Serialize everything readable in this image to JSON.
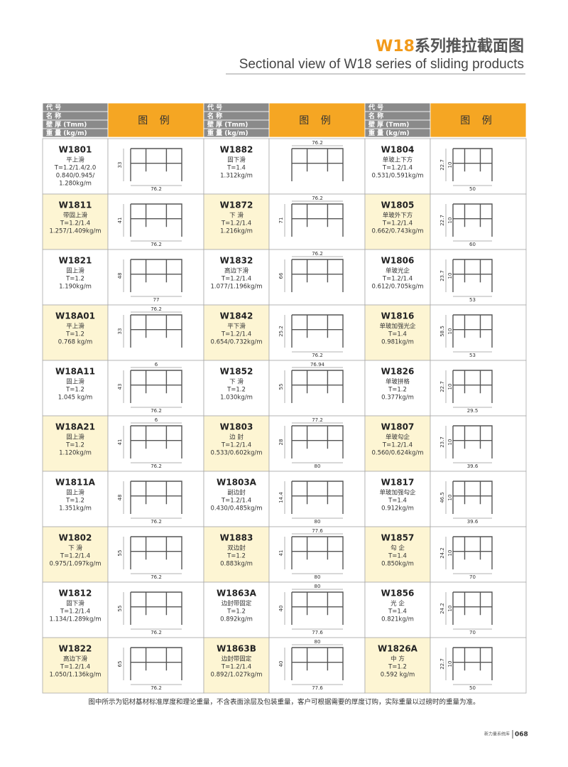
{
  "header": {
    "title_code": "W18",
    "title_rest": "系列推拉截面图",
    "subtitle": "Sectional view of W18 series of sliding products"
  },
  "table": {
    "header_labels": [
      "代 号",
      "名 称",
      "壁 厚 (Tmm)",
      "重 量 (kg/m)"
    ],
    "legend_header": "图 例",
    "columns": [
      [
        {
          "code": "W1801",
          "name": "平上滑",
          "thickness": "T=1.2/1.4/2.0",
          "weight": [
            "0.840/0.945/",
            "1.280kg/m"
          ],
          "dims": {
            "h": 33,
            "w": 76.2
          }
        },
        {
          "code": "W1811",
          "name": "带固上滑",
          "thickness": "T=1.2/1.4",
          "weight": [
            "1.257/1.409kg/m"
          ],
          "dims": {
            "h": 41,
            "w": 76.2
          }
        },
        {
          "code": "W1821",
          "name": "固上滑",
          "thickness": "T=1.2",
          "weight": [
            "1.190kg/m"
          ],
          "dims": {
            "h": 48,
            "w": 77
          }
        },
        {
          "code": "W18A01",
          "name": "平上滑",
          "thickness": "T=1.2",
          "weight": [
            "0.768 kg/m"
          ],
          "dims": {
            "top": 76.2,
            "h": 33
          }
        },
        {
          "code": "W18A11",
          "name": "固上滑",
          "thickness": "T=1.2",
          "weight": [
            "1.045 kg/m"
          ],
          "dims": {
            "top": 6,
            "h": 43,
            "w": 76.2
          }
        },
        {
          "code": "W18A21",
          "name": "固上滑",
          "thickness": "T=1.2",
          "weight": [
            "1.120kg/m"
          ],
          "dims": {
            "top": 6,
            "h": 41,
            "w": 76.2
          }
        },
        {
          "code": "W1811A",
          "name": "固上滑",
          "thickness": "T=1.2",
          "weight": [
            "1.351kg/m"
          ],
          "dims": {
            "h": 48,
            "w": 76.2
          }
        },
        {
          "code": "W1802",
          "name": "下 滑",
          "thickness": "T=1.2/1.4",
          "weight": [
            "0.975/1.097kg/m"
          ],
          "dims": {
            "h": 55,
            "w": 76.2
          }
        },
        {
          "code": "W1812",
          "name": "固下滑",
          "thickness": "T=1.2/1.4",
          "weight": [
            "1.134/1.289kg/m"
          ],
          "dims": {
            "h": 55,
            "w": 76.2
          }
        },
        {
          "code": "W1822",
          "name": "高边下滑",
          "thickness": "T=1.2/1.4",
          "weight": [
            "1.050/1.136kg/m"
          ],
          "dims": {
            "h": 65,
            "w": 76.2
          }
        }
      ],
      [
        {
          "code": "W1882",
          "name": "固下滑",
          "thickness": "T=1.4",
          "weight": [
            "1.312kg/m"
          ],
          "dims": {
            "top": 76.2
          }
        },
        {
          "code": "W1872",
          "name": "下 滑",
          "thickness": "T=1.2/1.4",
          "weight": [
            "1.216kg/m"
          ],
          "dims": {
            "top": 76.2,
            "h": 71
          }
        },
        {
          "code": "W1832",
          "name": "高边下滑",
          "thickness": "T=1.2/1.4",
          "weight": [
            "1.077/1.196kg/m"
          ],
          "dims": {
            "top": 76.2,
            "h": 66
          }
        },
        {
          "code": "W1842",
          "name": "平下滑",
          "thickness": "T=1.2/1.4",
          "weight": [
            "0.654/0.732kg/m"
          ],
          "dims": {
            "h": 25.2,
            "w": 76.2
          }
        },
        {
          "code": "W1852",
          "name": "下 滑",
          "thickness": "T=1.2",
          "weight": [
            "1.030kg/m"
          ],
          "dims": {
            "top": 76.94,
            "h": 55
          }
        },
        {
          "code": "W1803",
          "name": "边 封",
          "thickness": "T=1.2/1.4",
          "weight": [
            "0.533/0.602kg/m"
          ],
          "dims": {
            "top": 77.2,
            "h": 28,
            "w": 80
          }
        },
        {
          "code": "W1803A",
          "name": "副边封",
          "thickness": "T=1.2/1.4",
          "weight": [
            "0.430/0.485kg/m"
          ],
          "dims": {
            "h": 14.4,
            "w": 80
          }
        },
        {
          "code": "W1883",
          "name": "双边封",
          "thickness": "T=1.2",
          "weight": [
            "0.883kg/m"
          ],
          "dims": {
            "top": 77.6,
            "h": 41,
            "w": 80
          }
        },
        {
          "code": "W1863A",
          "name": "边封带固定",
          "thickness": "T=1.2",
          "weight": [
            "0.892kg/m"
          ],
          "dims": {
            "top": 80,
            "h": 40,
            "w": 77.6
          }
        },
        {
          "code": "W1863B",
          "name": "边封带固定",
          "thickness": "T=1.2/1.4",
          "weight": [
            "0.892/1.027kg/m"
          ],
          "dims": {
            "top": 80,
            "h": 40,
            "w": 77.6
          }
        }
      ],
      [
        {
          "code": "W1804",
          "name": "单玻上下方",
          "thickness": "T=1.2/1.4",
          "weight": [
            "0.531/0.591kg/m"
          ],
          "dims": {
            "h": 22.7,
            "extra": 10,
            "w": 50
          }
        },
        {
          "code": "W1805",
          "name": "单玻外下方",
          "thickness": "T=1.2/1.4",
          "weight": [
            "0.662/0.743kg/m"
          ],
          "dims": {
            "h": 22.7,
            "extra": 10,
            "w": 60
          }
        },
        {
          "code": "W1806",
          "name": "单玻光企",
          "thickness": "T=1.2/1.4",
          "weight": [
            "0.612/0.705kg/m"
          ],
          "dims": {
            "h": 23.7,
            "extra": 10,
            "w": 53
          }
        },
        {
          "code": "W1816",
          "name": "单玻加强光企",
          "thickness": "T=1.4",
          "weight": [
            "0.981kg/m"
          ],
          "dims": {
            "h": 58.5,
            "extra": 10,
            "w": 53
          }
        },
        {
          "code": "W1826",
          "name": "单玻拼格",
          "thickness": "T=1.2",
          "weight": [
            "0.377kg/m"
          ],
          "dims": {
            "h": 22.7,
            "extra": 10,
            "w": 29.5
          }
        },
        {
          "code": "W1807",
          "name": "单玻勾企",
          "thickness": "T=1.2/1.4",
          "weight": [
            "0.560/0.624kg/m"
          ],
          "dims": {
            "h": 23.7,
            "extra": 10,
            "w": 39.6
          }
        },
        {
          "code": "W1817",
          "name": "单玻加强勾企",
          "thickness": "T=1.4",
          "weight": [
            "0.912kg/m"
          ],
          "dims": {
            "h": 46.5,
            "extra": 10,
            "w": 39.6
          }
        },
        {
          "code": "W1857",
          "name": "勾 企",
          "thickness": "T=1.4",
          "weight": [
            "0.850kg/m"
          ],
          "dims": {
            "h": 24.2,
            "extra": 10,
            "w": 70
          }
        },
        {
          "code": "W1856",
          "name": "光 企",
          "thickness": "T=1.4",
          "weight": [
            "0.821kg/m"
          ],
          "dims": {
            "h": 24.2,
            "extra": 10,
            "w": 70
          }
        },
        {
          "code": "W1826A",
          "name": "中 方",
          "thickness": "T=1.2",
          "weight": [
            "0.592 kg/m"
          ],
          "dims": {
            "h": 22.7,
            "extra": 10,
            "w": 50
          }
        }
      ]
    ]
  },
  "footer": {
    "note": "图中所示为铝材基材标准厚度和理论重量，不含表面涂层及包装重量，客户可根据需要的厚度订购，实际重量以过磅时的重量为准。",
    "brand": "新力量系统库",
    "page": "068"
  }
}
